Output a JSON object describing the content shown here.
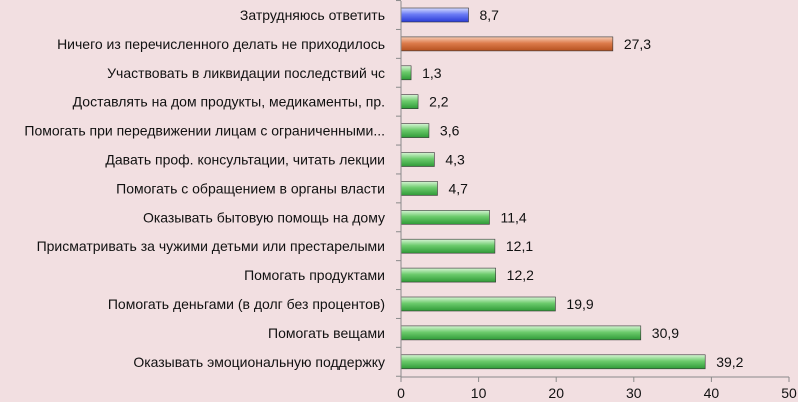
{
  "chart_data": {
    "type": "bar",
    "orientation": "horizontal",
    "categories": [
      "Затрудняюсь ответить",
      "Ничего из перечисленного делать не приходилось",
      "Участвовать в ликвидации последствий чс",
      "Доставлять на дом продукты, медикаменты, пр.",
      "Помогать при передвижении лицам с ограниченными...",
      "Давать проф. консультации, читать лекции",
      "Помогать с обращением в органы власти",
      "Оказывать бытовую помощь на дому",
      "Присматривать за чужими детьми или престарелыми",
      "Помогать продуктами",
      "Помогать деньгами (в долг без процентов)",
      "Помогать вещами",
      "Оказывать эмоциональную поддержку"
    ],
    "values": [
      8.7,
      27.3,
      1.3,
      2.2,
      3.6,
      4.3,
      4.7,
      11.4,
      12.1,
      12.2,
      19.9,
      30.9,
      39.2
    ],
    "value_labels": [
      "8,7",
      "27,3",
      "1,3",
      "2,2",
      "3,6",
      "4,3",
      "4,7",
      "11,4",
      "12,1",
      "12,2",
      "19,9",
      "30,9",
      "39,2"
    ],
    "bar_colors": [
      "blue",
      "orange",
      "green",
      "green",
      "green",
      "green",
      "green",
      "green",
      "green",
      "green",
      "green",
      "green",
      "green"
    ],
    "xlim": [
      0,
      50
    ],
    "xticks": [
      "0",
      "10",
      "20",
      "30",
      "40",
      "50"
    ],
    "title": "",
    "xlabel": "",
    "ylabel": "",
    "grid": false,
    "colors": {
      "background": "#f2dfe1",
      "blue": "#4d5ff0",
      "orange": "#cf6a3a",
      "green": "#55b85a",
      "axis": "#8a8a8a"
    }
  }
}
